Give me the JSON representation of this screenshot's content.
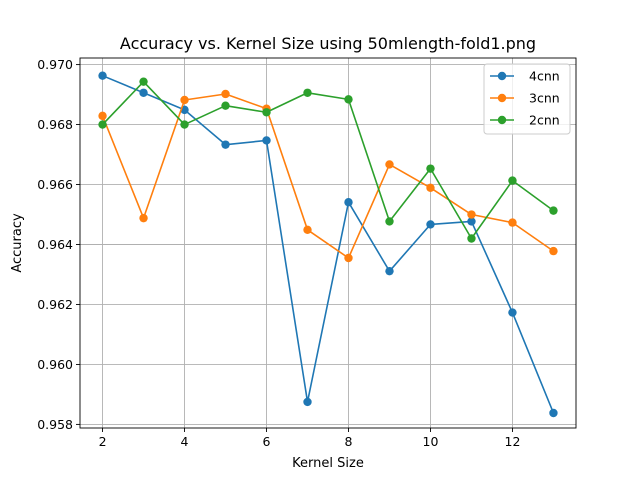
{
  "chart_data": {
    "type": "line",
    "title": "Accuracy vs. Kernel Size using 50mlength-fold1.png",
    "xlabel": "Kernel Size",
    "ylabel": "Accuracy",
    "x": [
      2,
      3,
      4,
      5,
      6,
      7,
      8,
      9,
      10,
      11,
      12,
      13
    ],
    "xlim": [
      1.45,
      13.55
    ],
    "ylim": [
      0.95788,
      0.97022
    ],
    "xticks": [
      2,
      4,
      6,
      8,
      10,
      12
    ],
    "xtick_labels": [
      "2",
      "4",
      "6",
      "8",
      "10",
      "12"
    ],
    "yticks": [
      0.958,
      0.96,
      0.962,
      0.964,
      0.966,
      0.968,
      0.97
    ],
    "ytick_labels": [
      "0.958",
      "0.960",
      "0.962",
      "0.964",
      "0.966",
      "0.968",
      "0.970"
    ],
    "grid": true,
    "legend_position": "top-right",
    "series": [
      {
        "name": "4cnn",
        "color": "#1f77b4",
        "values": [
          0.96963,
          0.96906,
          0.96849,
          0.96733,
          0.96747,
          0.95875,
          0.96541,
          0.96311,
          0.96467,
          0.96477,
          0.96173,
          0.95838
        ]
      },
      {
        "name": "3cnn",
        "color": "#ff7f0e",
        "values": [
          0.96829,
          0.96488,
          0.96882,
          0.96902,
          0.96853,
          0.96449,
          0.96355,
          0.96667,
          0.96589,
          0.965,
          0.96473,
          0.96378
        ]
      },
      {
        "name": "2cnn",
        "color": "#2ca02c",
        "values": [
          0.968,
          0.96943,
          0.968,
          0.96863,
          0.96841,
          0.96906,
          0.96884,
          0.96477,
          0.96653,
          0.9642,
          0.96613,
          0.96513
        ]
      }
    ]
  }
}
